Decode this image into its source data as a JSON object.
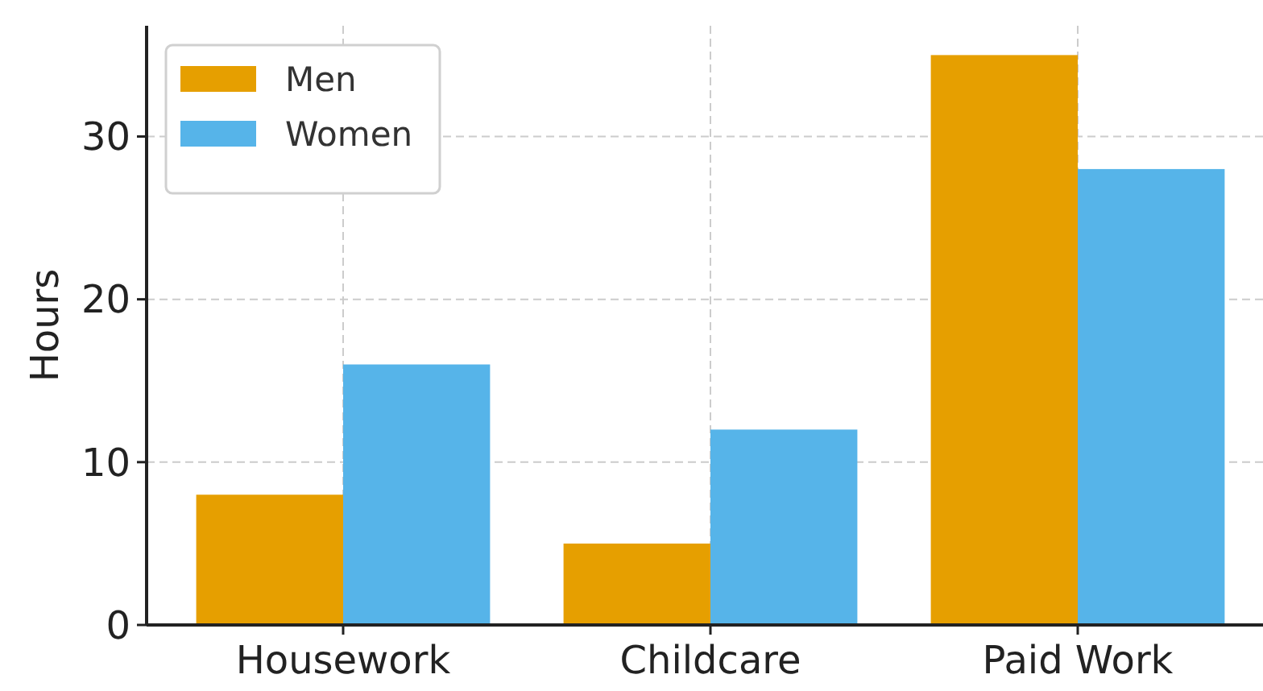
{
  "chart_data": {
    "type": "bar",
    "ylabel": "Hours",
    "categories": [
      "Housework",
      "Childcare",
      "Paid Work"
    ],
    "series": [
      {
        "name": "Men",
        "color": "#e69f00",
        "values": [
          8,
          5,
          35
        ]
      },
      {
        "name": "Women",
        "color": "#56b4e9",
        "values": [
          16,
          12,
          28
        ]
      }
    ],
    "ylim": [
      0,
      36.8
    ],
    "yticks": [
      0,
      10,
      20,
      30
    ],
    "grid": true,
    "legend": "top left"
  }
}
